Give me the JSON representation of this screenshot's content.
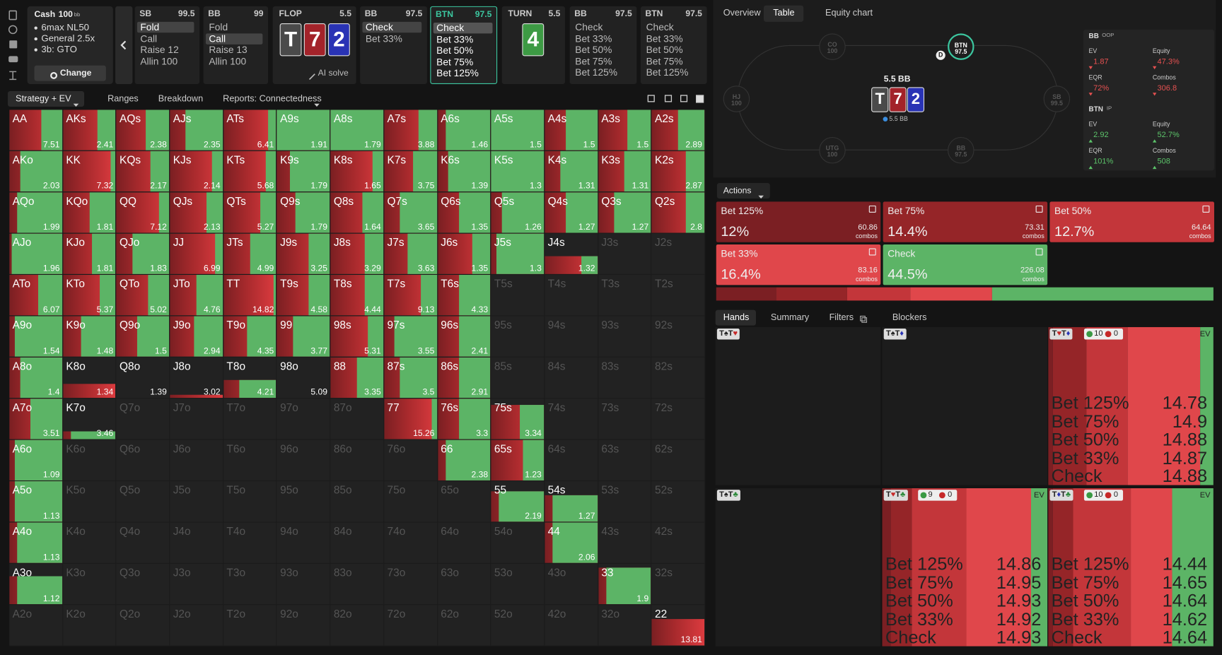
{
  "game": {
    "type": "Cash",
    "stack": 100,
    "unit": "bb",
    "settings": [
      "6max NL50",
      "General 2.5x",
      "3b: GTO"
    ],
    "button": "Change"
  },
  "street_nav": [
    {
      "player": "SB",
      "stack": 99.5,
      "options": [
        "Fold",
        "Call",
        "Raise 12",
        "Allin 100"
      ],
      "selected": 0
    },
    {
      "player": "BB",
      "stack": 99,
      "options": [
        "Fold",
        "Call",
        "Raise 13",
        "Allin 100"
      ],
      "selected": 1
    },
    {
      "street": "FLOP",
      "pot": 5.5,
      "cards": [
        {
          "rank": "T",
          "color": "#4a4a4a"
        },
        {
          "rank": "7",
          "color": "#a3232a"
        },
        {
          "rank": "2",
          "color": "#2933b5"
        }
      ],
      "solve": "AI solve"
    },
    {
      "player": "BB",
      "stack": 97.5,
      "options": [
        "Check",
        "Bet 33%"
      ],
      "selected": 0
    },
    {
      "player": "BTN",
      "stack": 97.5,
      "options": [
        "Check",
        "Bet 33%",
        "Bet 50%",
        "Bet 75%",
        "Bet 125%"
      ],
      "selected": 0,
      "active": true
    },
    {
      "street": "TURN",
      "pot": 5.5,
      "cards": [
        {
          "rank": "4",
          "color": "#3d9a44"
        }
      ]
    },
    {
      "player": "BB",
      "stack": 97.5,
      "options": [
        "Check",
        "Bet 33%",
        "Bet 50%",
        "Bet 75%",
        "Bet 125%"
      ]
    },
    {
      "player": "BTN",
      "stack": 97.5,
      "options": [
        "Check",
        "Bet 33%",
        "Bet 50%",
        "Bet 75%",
        "Bet 125%"
      ]
    }
  ],
  "strategy_tabs": [
    "Strategy + EV",
    "Ranges",
    "Breakdown",
    "Reports: Connectedness"
  ],
  "grid": {
    "rows": [
      [
        {
          "h": "AA",
          "ev": 7.51,
          "check": 0.4
        },
        {
          "h": "AKs",
          "ev": 2.41,
          "check": 0.35
        },
        {
          "h": "AQs",
          "ev": 2.38,
          "check": 0.45
        },
        {
          "h": "AJs",
          "ev": 2.35,
          "check": 0.7
        },
        {
          "h": "ATs",
          "ev": 6.41,
          "check": 0.15
        },
        {
          "h": "A9s",
          "ev": 1.91,
          "check": 1
        },
        {
          "h": "A8s",
          "ev": 1.79,
          "check": 1
        },
        {
          "h": "A7s",
          "ev": 3.88,
          "check": 0.35
        },
        {
          "h": "A6s",
          "ev": 1.46,
          "check": 0.85
        },
        {
          "h": "A5s",
          "ev": 1.5,
          "check": 1
        },
        {
          "h": "A4s",
          "ev": 1.5,
          "check": 0.6
        },
        {
          "h": "A3s",
          "ev": 1.5,
          "check": 0.45
        },
        {
          "h": "A2s",
          "ev": 2.89,
          "check": 0.5
        }
      ],
      [
        {
          "h": "AKo",
          "ev": 2.03,
          "check": 0.8
        },
        {
          "h": "KK",
          "ev": 7.32,
          "check": 0.1
        },
        {
          "h": "KQs",
          "ev": 2.17,
          "check": 0.35
        },
        {
          "h": "KJs",
          "ev": 2.14,
          "check": 0.2
        },
        {
          "h": "KTs",
          "ev": 5.68,
          "check": 0.2
        },
        {
          "h": "K9s",
          "ev": 1.79,
          "check": 0.75
        },
        {
          "h": "K8s",
          "ev": 1.65,
          "check": 0.2
        },
        {
          "h": "K7s",
          "ev": 3.75,
          "check": 0.45
        },
        {
          "h": "K6s",
          "ev": 1.39,
          "check": 0.8
        },
        {
          "h": "K5s",
          "ev": 1.3,
          "check": 1
        },
        {
          "h": "K4s",
          "ev": 1.31,
          "check": 0.7
        },
        {
          "h": "K3s",
          "ev": 1.31,
          "check": 0.5
        },
        {
          "h": "K2s",
          "ev": 2.87,
          "check": 0.35
        }
      ],
      [
        {
          "h": "AQo",
          "ev": 1.99,
          "check": 0.85
        },
        {
          "h": "KQo",
          "ev": 1.81,
          "check": 0.5
        },
        {
          "h": "QQ",
          "ev": 7.12,
          "check": 0.2
        },
        {
          "h": "QJs",
          "ev": 2.13,
          "check": 0.3
        },
        {
          "h": "QTs",
          "ev": 5.27,
          "check": 0.3
        },
        {
          "h": "Q9s",
          "ev": 1.79,
          "check": 0.65
        },
        {
          "h": "Q8s",
          "ev": 1.64,
          "check": 0.4
        },
        {
          "h": "Q7s",
          "ev": 3.65,
          "check": 0.7
        },
        {
          "h": "Q6s",
          "ev": 1.35,
          "check": 0.6
        },
        {
          "h": "Q5s",
          "ev": 1.26,
          "check": 0.8
        },
        {
          "h": "Q4s",
          "ev": 1.27,
          "check": 0.6
        },
        {
          "h": "Q3s",
          "ev": 1.27,
          "check": 0.7
        },
        {
          "h": "Q2s",
          "ev": 2.8,
          "check": 0.35
        }
      ],
      [
        {
          "h": "AJo",
          "ev": 1.96,
          "check": 0.95
        },
        {
          "h": "KJo",
          "ev": 1.81,
          "check": 0.45
        },
        {
          "h": "QJo",
          "ev": 1.83,
          "check": 0.7
        },
        {
          "h": "JJ",
          "ev": 6.99,
          "check": 0.15
        },
        {
          "h": "JTs",
          "ev": 4.99,
          "check": 0.5
        },
        {
          "h": "J9s",
          "ev": 3.25,
          "check": 0.4
        },
        {
          "h": "J8s",
          "ev": 3.29,
          "check": 0.35
        },
        {
          "h": "J7s",
          "ev": 3.63,
          "check": 0.55
        },
        {
          "h": "J6s",
          "ev": 1.35,
          "check": 0.35
        },
        {
          "h": "J5s",
          "ev": 1.3,
          "check": 0.9
        },
        {
          "h": "J4s",
          "ev": 1.32,
          "check": 0.3,
          "weight": 0.45
        },
        {
          "h": "J3s"
        },
        {
          "h": "J2s"
        }
      ],
      [
        {
          "h": "ATo",
          "ev": 6.07,
          "check": 0.45
        },
        {
          "h": "KTo",
          "ev": 5.37,
          "check": 0.3
        },
        {
          "h": "QTo",
          "ev": 5.02,
          "check": 0.4
        },
        {
          "h": "JTo",
          "ev": 4.76,
          "check": 0.5
        },
        {
          "h": "TT",
          "ev": 14.82,
          "check": 0.05
        },
        {
          "h": "T9s",
          "ev": 4.58,
          "check": 0.4
        },
        {
          "h": "T8s",
          "ev": 4.44,
          "check": 0.35
        },
        {
          "h": "T7s",
          "ev": 9.13,
          "check": 0.3
        },
        {
          "h": "T6s",
          "ev": 4.33,
          "check": 0.6
        },
        {
          "h": "T5s"
        },
        {
          "h": "T4s"
        },
        {
          "h": "T3s"
        },
        {
          "h": "T2s"
        }
      ],
      [
        {
          "h": "A9o",
          "ev": 1.54,
          "check": 0.9
        },
        {
          "h": "K9o",
          "ev": 1.48,
          "check": 0.65
        },
        {
          "h": "Q9o",
          "ev": 1.5,
          "check": 0.6
        },
        {
          "h": "J9o",
          "ev": 2.94,
          "check": 0.55
        },
        {
          "h": "T9o",
          "ev": 4.35,
          "check": 0.55
        },
        {
          "h": "99",
          "ev": 3.77,
          "check": 0.7
        },
        {
          "h": "98s",
          "ev": 5.31,
          "check": 0.3
        },
        {
          "h": "97s",
          "ev": 3.55,
          "check": 0.8
        },
        {
          "h": "96s",
          "ev": 2.41,
          "check": 0.6
        },
        {
          "h": "95s"
        },
        {
          "h": "94s"
        },
        {
          "h": "93s"
        },
        {
          "h": "92s"
        }
      ],
      [
        {
          "h": "A8o",
          "ev": 1.4,
          "check": 0.8
        },
        {
          "h": "K8o",
          "ev": 1.34,
          "check": 0,
          "weight": 0.35
        },
        {
          "h": "Q8o",
          "ev": 1.39,
          "check": 0,
          "weight": 0
        },
        {
          "h": "J8o",
          "ev": 3.02,
          "check": 0,
          "weight": 0.08
        },
        {
          "h": "T8o",
          "ev": 4.21,
          "check": 0.7,
          "weight": 0.45
        },
        {
          "h": "98o",
          "ev": 5.09,
          "check": 0,
          "weight": 0
        },
        {
          "h": "88",
          "ev": 3.35,
          "check": 0.5
        },
        {
          "h": "87s",
          "ev": 3.5,
          "check": 0.7
        },
        {
          "h": "86s",
          "ev": 2.91,
          "check": 0.6
        },
        {
          "h": "85s"
        },
        {
          "h": "84s"
        },
        {
          "h": "83s"
        },
        {
          "h": "82s"
        }
      ],
      [
        {
          "h": "A7o",
          "ev": 3.51,
          "check": 0.6
        },
        {
          "h": "K7o",
          "ev": 3.46,
          "check": 0.85,
          "weight": 0.2
        },
        {
          "h": "Q7o"
        },
        {
          "h": "J7o"
        },
        {
          "h": "T7o"
        },
        {
          "h": "97o"
        },
        {
          "h": "87o"
        },
        {
          "h": "77",
          "ev": 15.26,
          "check": 0.1
        },
        {
          "h": "76s",
          "ev": 3.3,
          "check": 0.6
        },
        {
          "h": "75s",
          "ev": 3.34,
          "check": 0.45,
          "weight": 0.85
        },
        {
          "h": "74s"
        },
        {
          "h": "73s"
        },
        {
          "h": "72s"
        }
      ],
      [
        {
          "h": "A6o",
          "ev": 1.09,
          "check": 0.9
        },
        {
          "h": "K6o"
        },
        {
          "h": "Q6o"
        },
        {
          "h": "J6o"
        },
        {
          "h": "T6o"
        },
        {
          "h": "96o"
        },
        {
          "h": "86o"
        },
        {
          "h": "76o"
        },
        {
          "h": "66",
          "ev": 2.38,
          "check": 0.85
        },
        {
          "h": "65s",
          "ev": 1.23,
          "check": 0.4
        },
        {
          "h": "64s"
        },
        {
          "h": "63s"
        },
        {
          "h": "62s"
        }
      ],
      [
        {
          "h": "A5o",
          "ev": 1.13,
          "check": 0.9
        },
        {
          "h": "K5o"
        },
        {
          "h": "Q5o"
        },
        {
          "h": "J5o"
        },
        {
          "h": "T5o"
        },
        {
          "h": "95o"
        },
        {
          "h": "85o"
        },
        {
          "h": "75o"
        },
        {
          "h": "65o"
        },
        {
          "h": "55",
          "ev": 2.19,
          "check": 0.85,
          "weight": 0.75
        },
        {
          "h": "54s",
          "ev": 1.27,
          "check": 0.85,
          "weight": 0.65
        },
        {
          "h": "53s"
        },
        {
          "h": "52s"
        }
      ],
      [
        {
          "h": "A4o",
          "ev": 1.13,
          "check": 0.85
        },
        {
          "h": "K4o"
        },
        {
          "h": "Q4o"
        },
        {
          "h": "J4o"
        },
        {
          "h": "T4o"
        },
        {
          "h": "94o"
        },
        {
          "h": "84o"
        },
        {
          "h": "74o"
        },
        {
          "h": "64o"
        },
        {
          "h": "54o"
        },
        {
          "h": "44",
          "ev": 2.06,
          "check": 0.85
        },
        {
          "h": "43s"
        },
        {
          "h": "42s"
        }
      ],
      [
        {
          "h": "A3o",
          "ev": 1.12,
          "check": 0.85,
          "weight": 0.7
        },
        {
          "h": "K3o"
        },
        {
          "h": "Q3o"
        },
        {
          "h": "J3o"
        },
        {
          "h": "T3o"
        },
        {
          "h": "93o"
        },
        {
          "h": "83o"
        },
        {
          "h": "73o"
        },
        {
          "h": "63o"
        },
        {
          "h": "53o"
        },
        {
          "h": "43o"
        },
        {
          "h": "33",
          "ev": 1.9,
          "check": 0.85,
          "weight": 0.9
        },
        {
          "h": "32s"
        }
      ],
      [
        {
          "h": "A2o"
        },
        {
          "h": "K2o"
        },
        {
          "h": "Q2o"
        },
        {
          "h": "J2o"
        },
        {
          "h": "T2o"
        },
        {
          "h": "92o"
        },
        {
          "h": "82o"
        },
        {
          "h": "72o"
        },
        {
          "h": "62o"
        },
        {
          "h": "52o"
        },
        {
          "h": "42o"
        },
        {
          "h": "32o"
        },
        {
          "h": "22",
          "ev": 13.81,
          "check": 0,
          "weight": 0.65
        }
      ]
    ]
  },
  "view_tabs": [
    "Overview",
    "Table",
    "Equity chart"
  ],
  "view_tab_active": 1,
  "table": {
    "seats": [
      {
        "name": "CO",
        "stack": 100
      },
      {
        "name": "BTN",
        "stack": 97.5,
        "active": true
      },
      {
        "name": "HJ",
        "stack": 100
      },
      {
        "name": "SB",
        "stack": 99.5
      },
      {
        "name": "UTG",
        "stack": 100
      },
      {
        "name": "BB",
        "stack": 97.5
      }
    ],
    "dealer": "D",
    "pot": "5.5 BB",
    "board": [
      {
        "rank": "T",
        "color": "#4a4a4a"
      },
      {
        "rank": "7",
        "color": "#a3232a"
      },
      {
        "rank": "2",
        "color": "#2933b5"
      }
    ],
    "pot_small": "5.5 BB"
  },
  "stats": [
    {
      "player": "BB",
      "position": "OOP",
      "trend": "down",
      "color": "#e65151",
      "metrics": [
        {
          "name": "EV",
          "value": "1.87"
        },
        {
          "name": "Equity",
          "value": "47.3%"
        },
        {
          "name": "EQR",
          "value": "72%"
        },
        {
          "name": "Combos",
          "value": "306.8"
        }
      ]
    },
    {
      "player": "BTN",
      "position": "IP",
      "trend": "up",
      "color": "#5cc46a",
      "metrics": [
        {
          "name": "EV",
          "value": "2.92"
        },
        {
          "name": "Equity",
          "value": "52.7%"
        },
        {
          "name": "EQR",
          "value": "101%"
        },
        {
          "name": "Combos",
          "value": "508"
        }
      ]
    }
  ],
  "actions": {
    "title": "Actions",
    "unit": "combos",
    "items": [
      {
        "name": "Bet 125%",
        "freq": 12,
        "freq_label": "12%",
        "combos": 60.86,
        "color": "#7b1f23"
      },
      {
        "name": "Bet 75%",
        "freq": 14.4,
        "freq_label": "14.4%",
        "combos": 73.31,
        "color": "#952528"
      },
      {
        "name": "Bet 50%",
        "freq": 12.7,
        "freq_label": "12.7%",
        "combos": 64.64,
        "color": "#c3363a"
      },
      {
        "name": "Bet 33%",
        "freq": 16.4,
        "freq_label": "16.4%",
        "combos": 83.16,
        "color": "#e0474b"
      },
      {
        "name": "Check",
        "freq": 44.5,
        "freq_label": "44.5%",
        "combos": 226.08,
        "color": "#5cb466"
      }
    ]
  },
  "hands_tabs": [
    "Hands",
    "Summary",
    "Filters",
    "Blockers"
  ],
  "hands": {
    "ev_label": "EV",
    "cells": [
      {
        "combo": "T♠T♥"
      },
      {
        "combo": "T♠T♦"
      },
      {
        "combo": "T♥T♦",
        "good": 10,
        "bad": 0,
        "strategy": [
          3,
          20,
          25,
          44,
          8
        ],
        "evs": [
          14.78,
          14.9,
          14.88,
          14.87,
          14.88
        ]
      },
      {
        "combo": "T♠T♣"
      },
      {
        "combo": "T♥T♣",
        "good": 9,
        "bad": 0,
        "strategy": [
          5,
          13,
          33,
          39,
          10
        ],
        "evs": [
          14.86,
          14.95,
          14.93,
          14.92,
          14.93
        ]
      },
      {
        "combo": "T♦T♣",
        "good": 10,
        "bad": 0,
        "strategy": [
          3,
          12,
          35,
          25,
          25
        ],
        "evs": [
          14.44,
          14.65,
          14.64,
          14.62,
          14.64
        ]
      }
    ]
  }
}
